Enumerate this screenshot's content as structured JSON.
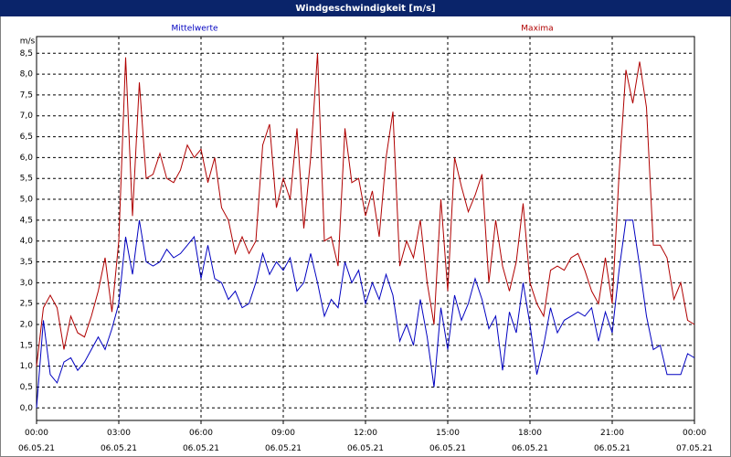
{
  "chart_data": {
    "type": "line",
    "title": "Windgeschwindigkeit [m/s]",
    "y_label": "m/s",
    "x": [
      0,
      0.25,
      0.5,
      0.75,
      1,
      1.25,
      1.5,
      1.75,
      2,
      2.25,
      2.5,
      2.75,
      3,
      3.25,
      3.5,
      3.75,
      4,
      4.25,
      4.5,
      4.75,
      5,
      5.25,
      5.5,
      5.75,
      6,
      6.25,
      6.5,
      6.75,
      7,
      7.25,
      7.5,
      7.75,
      8,
      8.25,
      8.5,
      8.75,
      9,
      9.25,
      9.5,
      9.75,
      10,
      10.25,
      10.5,
      10.75,
      11,
      11.25,
      11.5,
      11.75,
      12,
      12.25,
      12.5,
      12.75,
      13,
      13.25,
      13.5,
      13.75,
      14,
      14.25,
      14.5,
      14.75,
      15,
      15.25,
      15.5,
      15.75,
      16,
      16.25,
      16.5,
      16.75,
      17,
      17.25,
      17.5,
      17.75,
      18,
      18.25,
      18.5,
      18.75,
      19,
      19.25,
      19.5,
      19.75,
      20,
      20.25,
      20.5,
      20.75,
      21,
      21.25,
      21.5,
      21.75,
      22,
      22.25,
      22.5,
      22.75,
      23,
      23.25,
      23.5,
      23.75,
      24
    ],
    "series": [
      {
        "name": "Mittelwerte",
        "color": "#0000c0",
        "values": [
          0.0,
          2.1,
          0.8,
          0.6,
          1.1,
          1.2,
          0.9,
          1.1,
          1.4,
          1.7,
          1.4,
          1.9,
          2.5,
          4.1,
          3.2,
          4.5,
          3.5,
          3.4,
          3.5,
          3.8,
          3.6,
          3.7,
          3.9,
          4.1,
          3.1,
          3.9,
          3.1,
          3.0,
          2.6,
          2.8,
          2.4,
          2.5,
          3.0,
          3.7,
          3.2,
          3.5,
          3.3,
          3.6,
          2.8,
          3.0,
          3.7,
          3.0,
          2.2,
          2.6,
          2.4,
          3.5,
          3.0,
          3.3,
          2.5,
          3.0,
          2.6,
          3.2,
          2.7,
          1.6,
          2.0,
          1.5,
          2.6,
          1.7,
          0.5,
          2.4,
          1.4,
          2.7,
          2.1,
          2.5,
          3.1,
          2.6,
          1.9,
          2.2,
          0.9,
          2.3,
          1.8,
          3.0,
          2.0,
          0.8,
          1.5,
          2.4,
          1.8,
          2.1,
          2.2,
          2.3,
          2.2,
          2.4,
          1.6,
          2.3,
          1.8,
          3.3,
          4.5,
          4.5,
          3.4,
          2.2,
          1.4,
          1.5,
          0.8,
          0.8,
          0.8,
          1.3,
          1.2
        ]
      },
      {
        "name": "Maxima",
        "color": "#b00000",
        "values": [
          1.0,
          2.4,
          2.7,
          2.4,
          1.4,
          2.2,
          1.8,
          1.7,
          2.2,
          2.8,
          3.6,
          2.3,
          4.0,
          8.4,
          4.6,
          7.8,
          5.5,
          5.6,
          6.1,
          5.5,
          5.4,
          5.7,
          6.3,
          6.0,
          6.2,
          5.4,
          6.0,
          4.8,
          4.5,
          3.7,
          4.1,
          3.7,
          4.0,
          6.3,
          6.8,
          4.8,
          5.5,
          5.0,
          6.7,
          4.3,
          6.0,
          8.5,
          4.0,
          4.1,
          3.4,
          6.7,
          5.4,
          5.5,
          4.6,
          5.2,
          4.1,
          6.0,
          7.1,
          3.4,
          4.0,
          3.6,
          4.5,
          3.0,
          2.0,
          5.0,
          2.8,
          6.0,
          5.3,
          4.7,
          5.1,
          5.6,
          3.0,
          4.5,
          3.4,
          2.8,
          3.5,
          4.9,
          3.0,
          2.5,
          2.2,
          3.3,
          3.4,
          3.3,
          3.6,
          3.7,
          3.3,
          2.8,
          2.5,
          3.6,
          2.5,
          5.6,
          8.1,
          7.3,
          8.3,
          7.2,
          3.9,
          3.9,
          3.6,
          2.6,
          3.0,
          2.1,
          2.0
        ]
      }
    ],
    "xlim": [
      0,
      24
    ],
    "xticks": [
      {
        "value": 0,
        "label": "00:00\n06.05.21"
      },
      {
        "value": 3,
        "label": "03:00\n06.05.21"
      },
      {
        "value": 6,
        "label": "06:00\n06.05.21"
      },
      {
        "value": 9,
        "label": "09:00\n06.05.21"
      },
      {
        "value": 12,
        "label": "12:00\n06.05.21"
      },
      {
        "value": 15,
        "label": "15:00\n06.05.21"
      },
      {
        "value": 18,
        "label": "18:00\n06.05.21"
      },
      {
        "value": 21,
        "label": "21:00\n06.05.21"
      },
      {
        "value": 24,
        "label": "00:00\n07.05.21"
      }
    ],
    "ylim": [
      -0.3,
      8.9
    ],
    "yticks": [
      {
        "value": 0,
        "label": "0,0"
      },
      {
        "value": 0.5,
        "label": "0,5"
      },
      {
        "value": 1,
        "label": "1,0"
      },
      {
        "value": 1.5,
        "label": "1,5"
      },
      {
        "value": 2,
        "label": "2,0"
      },
      {
        "value": 2.5,
        "label": "2,5"
      },
      {
        "value": 3,
        "label": "3,0"
      },
      {
        "value": 3.5,
        "label": "3,5"
      },
      {
        "value": 4,
        "label": "4,0"
      },
      {
        "value": 4.5,
        "label": "4,5"
      },
      {
        "value": 5,
        "label": "5,0"
      },
      {
        "value": 5.5,
        "label": "5,5"
      },
      {
        "value": 6,
        "label": "6,0"
      },
      {
        "value": 6.5,
        "label": "6,5"
      },
      {
        "value": 7,
        "label": "7,0"
      },
      {
        "value": 7.5,
        "label": "7,5"
      },
      {
        "value": 8,
        "label": "8,0"
      },
      {
        "value": 8.5,
        "label": "8,5"
      }
    ],
    "grid": true
  }
}
